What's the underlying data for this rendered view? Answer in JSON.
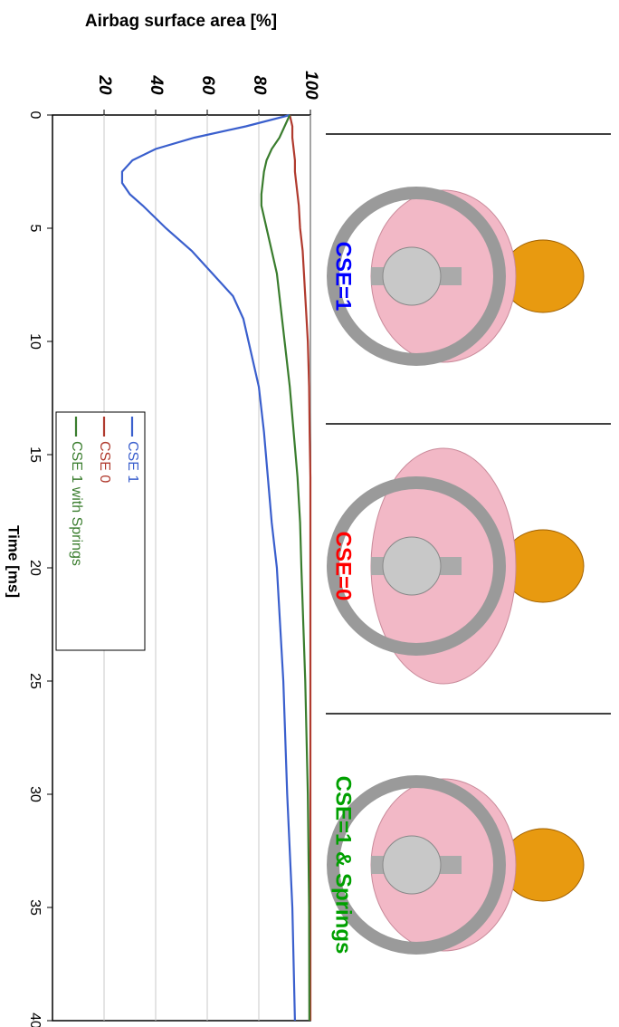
{
  "chart_data": {
    "type": "line",
    "title": "Airbag surface area [%]",
    "x_label": "Time [ms]",
    "x": [
      0,
      0.5,
      1,
      1.5,
      2,
      2.5,
      3,
      3.5,
      4,
      5,
      6,
      7,
      8,
      9,
      10,
      12,
      14,
      16,
      18,
      20,
      25,
      30,
      35,
      40
    ],
    "series": [
      {
        "name": "CSE 1",
        "color": "#3a5fcd",
        "values": [
          92,
          75,
          55,
          40,
          31,
          27,
          27,
          30,
          35,
          44,
          54,
          62,
          70,
          74,
          76,
          80,
          82,
          83.5,
          85,
          87,
          89.5,
          91,
          93,
          94
        ]
      },
      {
        "name": "CSE 0",
        "color": "#b03a2e",
        "values": [
          92,
          93,
          93,
          93.5,
          94,
          94,
          94.5,
          95,
          95.5,
          96,
          97,
          97.5,
          98,
          98.5,
          99,
          99.5,
          99.7,
          100,
          100,
          100,
          100,
          100,
          100,
          100
        ]
      },
      {
        "name": "CSE 1 with Springs",
        "color": "#3a7d2e",
        "values": [
          92,
          90,
          88,
          85,
          83,
          82,
          81.5,
          81,
          81,
          83,
          85,
          87,
          88,
          89,
          90,
          92,
          93.5,
          95,
          96,
          96.5,
          98,
          99,
          99.5,
          99.6
        ]
      }
    ],
    "xlim": [
      0,
      40
    ],
    "xticks": [
      0,
      5,
      10,
      15,
      20,
      25,
      30,
      35,
      40
    ],
    "ylim": [
      0,
      100
    ],
    "yticks": [
      20,
      40,
      60,
      80,
      100
    ],
    "grid": true,
    "annotations": [
      {
        "text": "CSE=1",
        "color": "#0000ff"
      },
      {
        "text": "CSE=0",
        "color": "#ff0000"
      },
      {
        "text": "CSE=1 & Springs",
        "color": "#00a000"
      }
    ]
  }
}
